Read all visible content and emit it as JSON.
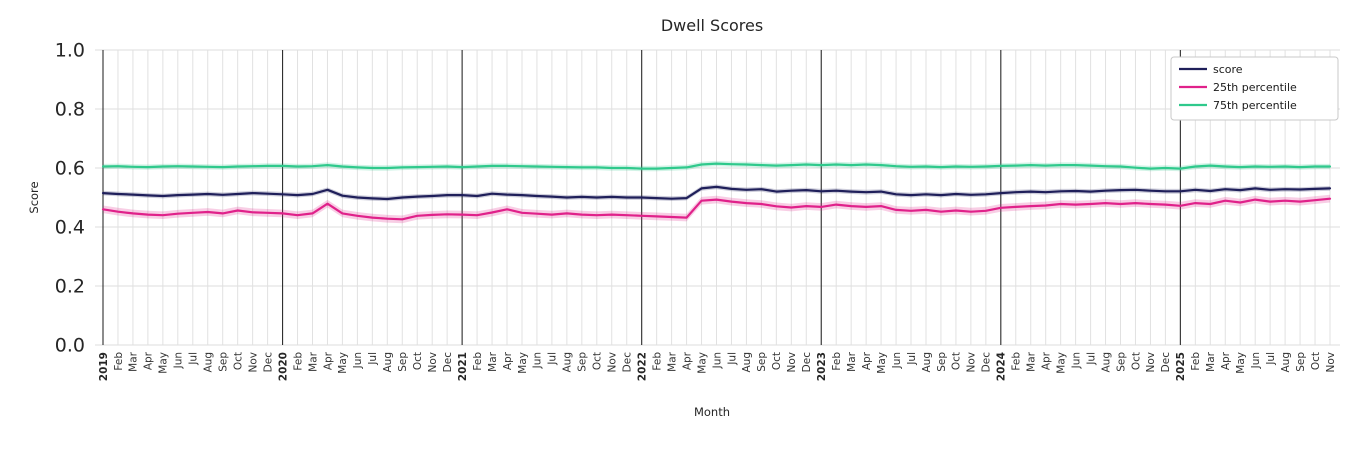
{
  "chart_data": {
    "type": "line",
    "title": "Dwell Scores",
    "xlabel": "Month",
    "ylabel": "Score",
    "ylim": [
      0.0,
      1.0
    ],
    "yticks": [
      0.0,
      0.2,
      0.4,
      0.6,
      0.8,
      1.0
    ],
    "ytick_labels": [
      "0.0",
      "0.2",
      "0.4",
      "0.6",
      "0.8",
      "1.0"
    ],
    "grid": true,
    "legend_position": "upper right",
    "categories": [
      "2019",
      "Feb",
      "Mar",
      "Apr",
      "May",
      "Jun",
      "Jul",
      "Aug",
      "Sep",
      "Oct",
      "Nov",
      "Dec",
      "2020",
      "Feb",
      "Mar",
      "Apr",
      "May",
      "Jun",
      "Jul",
      "Aug",
      "Sep",
      "Oct",
      "Nov",
      "Dec",
      "2021",
      "Feb",
      "Mar",
      "Apr",
      "May",
      "Jun",
      "Jul",
      "Aug",
      "Sep",
      "Oct",
      "Nov",
      "Dec",
      "2022",
      "Feb",
      "Mar",
      "Apr",
      "May",
      "Jun",
      "Jul",
      "Aug",
      "Sep",
      "Oct",
      "Nov",
      "Dec",
      "2023",
      "Feb",
      "Mar",
      "Apr",
      "May",
      "Jun",
      "Jul",
      "Aug",
      "Sep",
      "Oct",
      "Nov",
      "Dec",
      "2024",
      "Feb",
      "Mar",
      "Apr",
      "May",
      "Jun",
      "Jul",
      "Aug",
      "Sep",
      "Oct",
      "Nov",
      "Dec",
      "2025",
      "Feb",
      "Mar",
      "Apr",
      "May",
      "Jun",
      "Jul",
      "Aug",
      "Sep",
      "Oct",
      "Nov"
    ],
    "series": [
      {
        "name": "score",
        "color": "#1f1f5a",
        "band_halfwidth": 0.008,
        "values": [
          0.515,
          0.512,
          0.51,
          0.507,
          0.505,
          0.508,
          0.51,
          0.512,
          0.509,
          0.512,
          0.515,
          0.513,
          0.511,
          0.508,
          0.512,
          0.526,
          0.506,
          0.5,
          0.497,
          0.495,
          0.5,
          0.503,
          0.505,
          0.508,
          0.508,
          0.505,
          0.513,
          0.51,
          0.508,
          0.505,
          0.503,
          0.5,
          0.502,
          0.5,
          0.502,
          0.5,
          0.5,
          0.498,
          0.496,
          0.498,
          0.531,
          0.536,
          0.529,
          0.526,
          0.528,
          0.52,
          0.523,
          0.525,
          0.521,
          0.523,
          0.52,
          0.518,
          0.52,
          0.511,
          0.508,
          0.511,
          0.508,
          0.512,
          0.509,
          0.511,
          0.515,
          0.518,
          0.52,
          0.518,
          0.521,
          0.522,
          0.52,
          0.523,
          0.525,
          0.526,
          0.523,
          0.521,
          0.521,
          0.526,
          0.522,
          0.528,
          0.525,
          0.531,
          0.526,
          0.528,
          0.527,
          0.529,
          0.531
        ]
      },
      {
        "name": "25th percentile",
        "color": "#e0218a",
        "band_halfwidth": 0.013,
        "values": [
          0.46,
          0.452,
          0.446,
          0.442,
          0.44,
          0.445,
          0.448,
          0.451,
          0.446,
          0.456,
          0.45,
          0.448,
          0.446,
          0.44,
          0.446,
          0.479,
          0.446,
          0.438,
          0.432,
          0.428,
          0.426,
          0.438,
          0.441,
          0.443,
          0.442,
          0.44,
          0.449,
          0.46,
          0.448,
          0.445,
          0.442,
          0.446,
          0.442,
          0.44,
          0.442,
          0.44,
          0.438,
          0.436,
          0.434,
          0.432,
          0.489,
          0.493,
          0.486,
          0.481,
          0.478,
          0.47,
          0.466,
          0.471,
          0.468,
          0.476,
          0.471,
          0.468,
          0.471,
          0.458,
          0.455,
          0.458,
          0.452,
          0.456,
          0.452,
          0.455,
          0.465,
          0.468,
          0.471,
          0.473,
          0.478,
          0.476,
          0.478,
          0.481,
          0.478,
          0.481,
          0.478,
          0.476,
          0.472,
          0.481,
          0.478,
          0.489,
          0.483,
          0.493,
          0.486,
          0.489,
          0.486,
          0.491,
          0.496
        ]
      },
      {
        "name": "75th percentile",
        "color": "#2fc98c",
        "band_halfwidth": 0.009,
        "values": [
          0.605,
          0.606,
          0.604,
          0.603,
          0.605,
          0.606,
          0.605,
          0.604,
          0.603,
          0.605,
          0.606,
          0.607,
          0.607,
          0.605,
          0.606,
          0.61,
          0.605,
          0.602,
          0.6,
          0.6,
          0.602,
          0.603,
          0.604,
          0.605,
          0.603,
          0.605,
          0.607,
          0.607,
          0.606,
          0.605,
          0.604,
          0.603,
          0.602,
          0.602,
          0.6,
          0.6,
          0.598,
          0.598,
          0.6,
          0.602,
          0.612,
          0.615,
          0.613,
          0.612,
          0.61,
          0.608,
          0.61,
          0.612,
          0.61,
          0.612,
          0.61,
          0.612,
          0.61,
          0.606,
          0.604,
          0.605,
          0.603,
          0.605,
          0.604,
          0.605,
          0.607,
          0.608,
          0.61,
          0.608,
          0.61,
          0.61,
          0.608,
          0.606,
          0.605,
          0.601,
          0.598,
          0.6,
          0.598,
          0.605,
          0.608,
          0.605,
          0.603,
          0.605,
          0.604,
          0.605,
          0.603,
          0.605,
          0.605
        ]
      }
    ]
  }
}
